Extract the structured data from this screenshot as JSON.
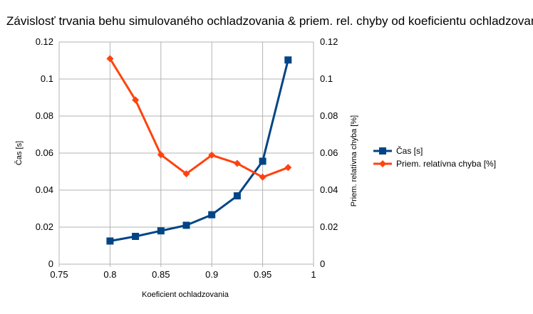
{
  "chart_data": {
    "type": "line",
    "title": "Závislosť trvania behu simulovaného ochladzovania & priem. rel. chyby od koeficientu ochladzovania",
    "xlabel": "Koeficient ochladzovania",
    "ylabel": "Čas [s]",
    "y2label": "Priem. relatívna chyba [%]",
    "xlim": [
      0.75,
      1
    ],
    "ylim": [
      0,
      0.12
    ],
    "y2lim": [
      0,
      0.12
    ],
    "x_ticks": [
      "0.75",
      "0.8",
      "0.85",
      "0.9",
      "0.95",
      "1"
    ],
    "y_ticks": [
      "0",
      "0.02",
      "0.04",
      "0.06",
      "0.08",
      "0.1",
      "0.12"
    ],
    "y2_ticks": [
      "0",
      "0.02",
      "0.04",
      "0.06",
      "0.08",
      "0.1",
      "0.12"
    ],
    "grid": true,
    "legend_position": "right",
    "x": [
      0.8,
      0.825,
      0.85,
      0.875,
      0.9,
      0.925,
      0.95,
      0.975
    ],
    "series": [
      {
        "name": "Čas [s]",
        "axis": "left",
        "color": "#004586",
        "marker": "square",
        "values": [
          0.0125,
          0.015,
          0.018,
          0.021,
          0.0267,
          0.0369,
          0.0556,
          0.1103
        ]
      },
      {
        "name": "Priem. relatívna chyba [%]",
        "axis": "right",
        "color": "#ff420e",
        "marker": "diamond",
        "values": [
          0.111,
          0.0887,
          0.0591,
          0.0488,
          0.0589,
          0.0544,
          0.047,
          0.0522
        ]
      }
    ]
  }
}
